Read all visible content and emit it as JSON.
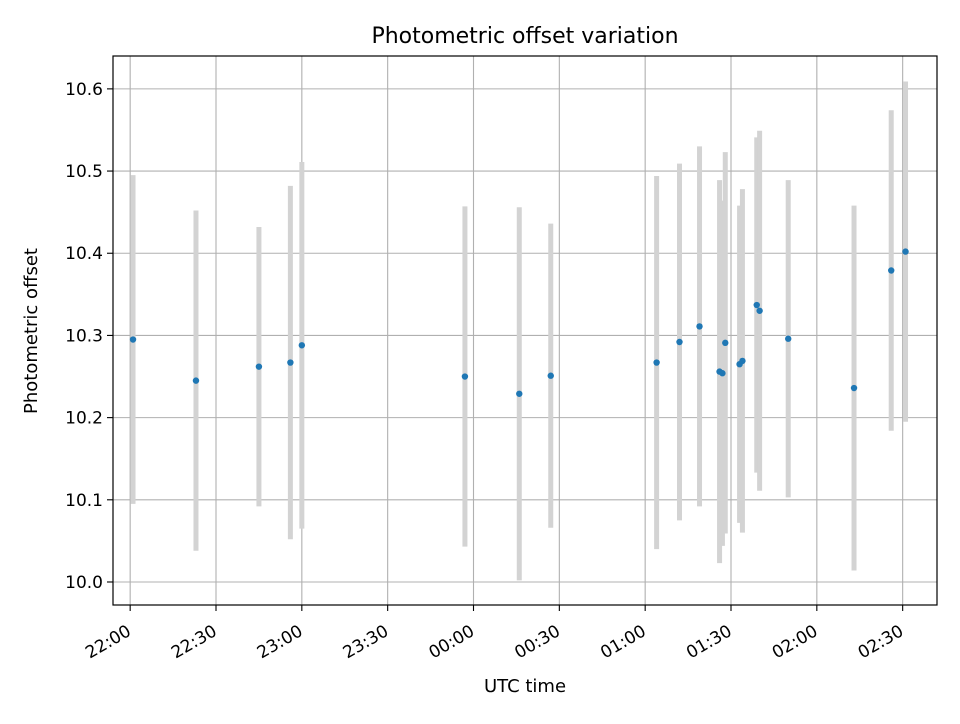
{
  "chart_data": {
    "type": "scatter",
    "title": "Photometric offset variation",
    "xlabel": "UTC time",
    "ylabel": "Photometric offset",
    "x_ticks": [
      "22:00",
      "22:30",
      "23:00",
      "23:30",
      "00:00",
      "00:30",
      "01:00",
      "01:30",
      "02:00",
      "02:30"
    ],
    "y_ticks": [
      "10.0",
      "10.1",
      "10.2",
      "10.3",
      "10.4",
      "10.5",
      "10.6"
    ],
    "xlim": [
      "21:54",
      "02:42"
    ],
    "ylim": [
      9.972,
      10.64
    ],
    "grid": true,
    "point_color": "#1f77b4",
    "errorbar_color": "#d3d3d3",
    "points": [
      {
        "x": "22:01",
        "y": 10.295,
        "err": 0.2
      },
      {
        "x": "22:23",
        "y": 10.245,
        "err": 0.207
      },
      {
        "x": "22:45",
        "y": 10.262,
        "err": 0.17
      },
      {
        "x": "22:56",
        "y": 10.267,
        "err": 0.215
      },
      {
        "x": "23:00",
        "y": 10.288,
        "err": 0.223
      },
      {
        "x": "23:57",
        "y": 10.25,
        "err": 0.207
      },
      {
        "x": "00:16",
        "y": 10.229,
        "err": 0.227
      },
      {
        "x": "00:27",
        "y": 10.251,
        "err": 0.185
      },
      {
        "x": "01:04",
        "y": 10.267,
        "err": 0.227
      },
      {
        "x": "01:12",
        "y": 10.292,
        "err": 0.217
      },
      {
        "x": "01:19",
        "y": 10.311,
        "err": 0.219
      },
      {
        "x": "01:26",
        "y": 10.256,
        "err": 0.233
      },
      {
        "x": "01:27",
        "y": 10.254,
        "err": 0.21
      },
      {
        "x": "01:28",
        "y": 10.291,
        "err": 0.232
      },
      {
        "x": "01:33",
        "y": 10.265,
        "err": 0.193
      },
      {
        "x": "01:34",
        "y": 10.269,
        "err": 0.209
      },
      {
        "x": "01:39",
        "y": 10.337,
        "err": 0.204
      },
      {
        "x": "01:40",
        "y": 10.33,
        "err": 0.219
      },
      {
        "x": "01:50",
        "y": 10.296,
        "err": 0.193
      },
      {
        "x": "02:13",
        "y": 10.236,
        "err": 0.222
      },
      {
        "x": "02:26",
        "y": 10.379,
        "err": 0.195
      },
      {
        "x": "02:31",
        "y": 10.402,
        "err": 0.207
      }
    ]
  }
}
